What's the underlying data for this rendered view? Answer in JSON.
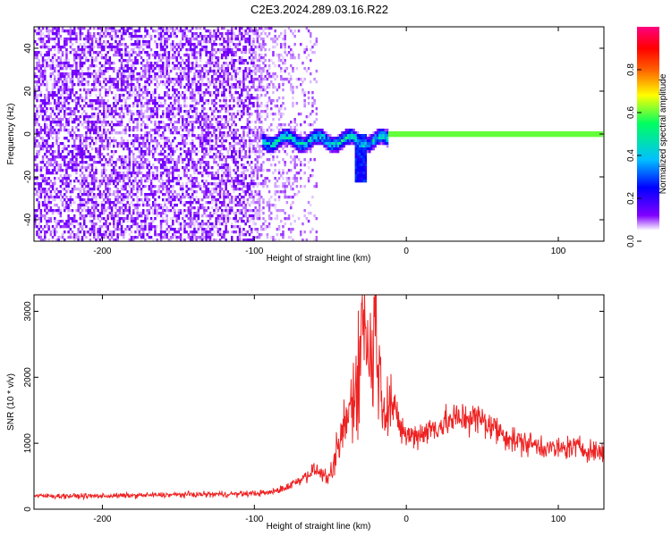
{
  "title": "C2E3.2024.289.03.16.R22",
  "chart_data": [
    {
      "type": "heatmap",
      "xlabel": "Height of straight line (km)",
      "ylabel": "Frequency (Hz)",
      "xlim": [
        -245,
        130
      ],
      "ylim": [
        -50,
        50
      ],
      "xticks": [
        -200,
        -100,
        0,
        100
      ],
      "yticks": [
        -40,
        -20,
        0,
        20,
        40
      ],
      "colorbar": {
        "label": "Normalized spectral amplitude",
        "range": [
          0.0,
          1.0
        ],
        "ticks": [
          0.0,
          0.2,
          0.4,
          0.6,
          0.8
        ],
        "tick_labels": [
          "0.0",
          "0.2",
          "0.4",
          "0.6",
          "0.8"
        ],
        "colors": [
          "#ffffff",
          "#8000ff",
          "#0000ff",
          "#00c0ff",
          "#00ff60",
          "#ffff00",
          "#ff6000",
          "#ff0000",
          "#ff0080"
        ]
      },
      "features": {
        "noise_region_km": [
          -245,
          -58
        ],
        "signal_onset_km": -95,
        "centerline_frequency_hz": 0,
        "downward_excursion": {
          "x_km": -30,
          "min_frequency_hz": -22
        },
        "strong_steady_line_from_km": -12
      }
    },
    {
      "type": "line",
      "xlabel": "Height of straight line (km)",
      "ylabel": "SNR (10 * v/v)",
      "xlim": [
        -245,
        130
      ],
      "ylim": [
        0,
        3250
      ],
      "xticks": [
        -200,
        -100,
        0,
        100
      ],
      "yticks": [
        0,
        1000,
        2000,
        3000
      ],
      "series": [
        {
          "color": "#ee2222",
          "x": [
            -245,
            -200,
            -150,
            -110,
            -90,
            -80,
            -70,
            -60,
            -50,
            -45,
            -40,
            -35,
            -30,
            -28,
            -25,
            -22,
            -20,
            -18,
            -15,
            -10,
            -5,
            0,
            10,
            20,
            30,
            40,
            50,
            60,
            70,
            80,
            90,
            100,
            110,
            120,
            130
          ],
          "y": [
            200,
            200,
            220,
            230,
            250,
            320,
            450,
            600,
            450,
            900,
            1300,
            1700,
            2400,
            3250,
            2200,
            2500,
            3200,
            2000,
            1700,
            1600,
            1300,
            1100,
            1150,
            1250,
            1350,
            1400,
            1350,
            1200,
            1050,
            1000,
            950,
            900,
            950,
            900,
            850
          ]
        }
      ]
    }
  ]
}
